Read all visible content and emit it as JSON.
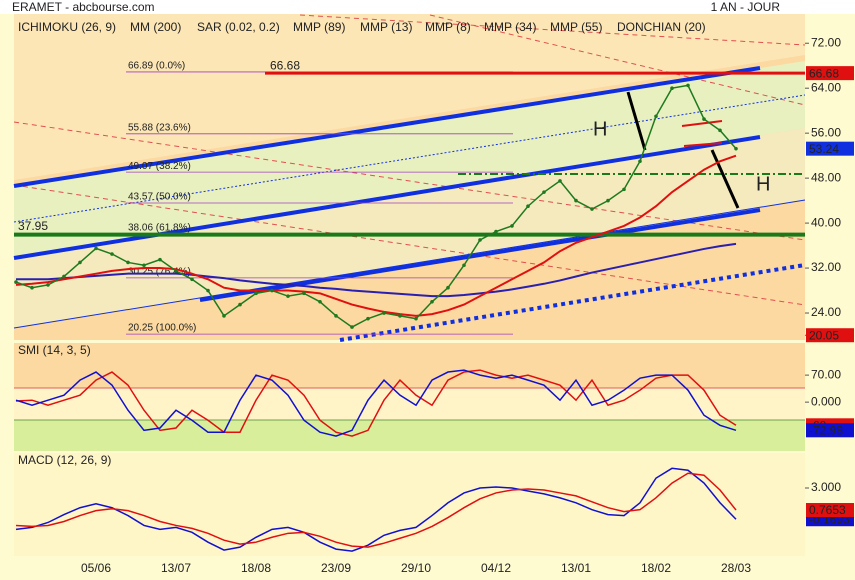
{
  "header": {
    "title": "ERAMET - abcbourse.com",
    "period": "1 AN - JOUR"
  },
  "chart_data": [
    {
      "type": "line",
      "categories": [
        null,
        null,
        null,
        null,
        null,
        "05/06",
        null,
        null,
        null,
        null,
        "13/07",
        null,
        null,
        null,
        null,
        "18/08",
        null,
        null,
        null,
        null,
        "23/09",
        null,
        null,
        null,
        null,
        "29/10",
        null,
        null,
        null,
        null,
        "04/12",
        null,
        null,
        null,
        null,
        "13/01",
        null,
        null,
        null,
        null,
        "18/02",
        null,
        null,
        null,
        null,
        "28/03"
      ],
      "values": [
        29.5,
        28.5,
        29,
        30.5,
        33,
        35.5,
        34.5,
        33,
        32.5,
        33.5,
        31.5,
        30,
        28,
        23.5,
        25.5,
        27.5,
        28,
        27,
        27.5,
        26,
        23.5,
        21.5,
        23,
        24,
        23.5,
        23,
        26,
        28.5,
        32.5,
        37,
        38.5,
        39.5,
        43,
        45.5,
        47.5,
        44,
        42.5,
        44,
        46,
        51,
        59,
        64,
        64.5,
        58.5,
        56.5,
        53.24
      ],
      "color": "#1f7a1f",
      "series": [
        {
          "name": "ICHIMOKU (26, 9)",
          "color": "#1010d0"
        },
        {
          "name": "MM (200)",
          "color": "#2a1fb0",
          "values": [
            30,
            30,
            30,
            30.2,
            30.4,
            30.6,
            30.8,
            31,
            31,
            31,
            31,
            30.8,
            30.5,
            30.2,
            29.8,
            29.5,
            29.2,
            29,
            28.8,
            28.5,
            28.3,
            28,
            27.8,
            27.6,
            27.4,
            27.2,
            27,
            27,
            27.2,
            27.5,
            27.8,
            28.2,
            28.7,
            29.2,
            29.8,
            30.5,
            31.2,
            31.8,
            32.4,
            33,
            33.6,
            34.2,
            34.8,
            35.4,
            35.9,
            36.3
          ]
        },
        {
          "name": "SAR (0.02, 0.2)",
          "color": "#e01010"
        },
        {
          "name": "MMP (89)",
          "color": "#e01010"
        },
        {
          "name": "MMP (13)",
          "color": "#1010d0"
        },
        {
          "name": "MMP (8)",
          "color": "#1a8a1a"
        },
        {
          "name": "MMP (34)",
          "color": "#e01010",
          "values": [
            29,
            29.2,
            29.5,
            30,
            30.5,
            31,
            31.5,
            31.8,
            32,
            32,
            31.8,
            31,
            30,
            28.5,
            28,
            28,
            28,
            28,
            27.8,
            27.5,
            26.5,
            25.5,
            24.8,
            24.2,
            23.8,
            23.5,
            23.8,
            24.5,
            25.5,
            27,
            28.5,
            30,
            31.5,
            33,
            35,
            36.5,
            37.5,
            38.5,
            39.5,
            41,
            43,
            45.5,
            47.5,
            49.5,
            51,
            52
          ]
        },
        {
          "name": "MMP (55)",
          "color": "#1010d0"
        },
        {
          "name": "DONCHIAN (20)",
          "color": "#6a6ad0"
        }
      ],
      "ylim": [
        19.2,
        77.2
      ],
      "yticks": [
        {
          "value": 72,
          "label": "72.00"
        },
        {
          "value": 64,
          "label": "64.00"
        },
        {
          "value": 56,
          "label": "56.00"
        },
        {
          "value": 48,
          "label": "48.00"
        },
        {
          "value": 40,
          "label": "40.00"
        },
        {
          "value": 32,
          "label": "32.00"
        },
        {
          "value": 24,
          "label": "24.00"
        }
      ],
      "fib_levels": [
        {
          "value": 66.89,
          "label": "66.89 (0.0%)"
        },
        {
          "value": 55.88,
          "label": "55.88 (23.6%)"
        },
        {
          "value": 49.07,
          "label": "49.07 (38.2%)"
        },
        {
          "value": 43.57,
          "label": "43.57 (50.0%)"
        },
        {
          "value": 38.06,
          "label": "38.06 (61.8%)"
        },
        {
          "value": 30.25,
          "label": "30.25 (76.4%)"
        },
        {
          "value": 20.25,
          "label": "20.25 (100.0%)"
        }
      ],
      "hlines": [
        {
          "value": 66.68,
          "color": "#e01010"
        },
        {
          "value": 37.95,
          "color": "#1a7a1a"
        },
        {
          "value": 20.05,
          "color": "#e01010"
        }
      ],
      "annotations": [
        "H",
        "H"
      ]
    },
    {
      "type": "line",
      "title": "SMI (14, 3, 5)",
      "ylim": [
        -124,
        148
      ],
      "yticks": [
        {
          "value": 70,
          "label": "70.00"
        },
        {
          "value": 0,
          "label": "0.000"
        }
      ],
      "series": [
        {
          "color": "#e01010",
          "values": [
            3,
            5,
            -8,
            5,
            18,
            57,
            78,
            44,
            -21,
            -73,
            -67,
            -21,
            -47,
            -78,
            -78,
            5,
            70,
            57,
            18,
            -47,
            -78,
            -88,
            -73,
            5,
            57,
            18,
            -8,
            57,
            78,
            83,
            70,
            62,
            70,
            57,
            44,
            5,
            57,
            -8,
            5,
            31,
            62,
            70,
            70,
            31,
            -34,
            -60
          ]
        },
        {
          "color": "#1010d0",
          "values": [
            5,
            -8,
            5,
            18,
            57,
            78,
            44,
            -21,
            -73,
            -67,
            -21,
            -47,
            -78,
            -78,
            5,
            70,
            57,
            18,
            -47,
            -78,
            -88,
            -73,
            5,
            57,
            18,
            -8,
            57,
            78,
            83,
            70,
            62,
            70,
            57,
            44,
            5,
            57,
            -8,
            5,
            31,
            62,
            70,
            70,
            31,
            -34,
            -60,
            -72.98
          ]
        }
      ]
    },
    {
      "type": "line",
      "title": "MACD (12, 26, 9)",
      "ylim": [
        -3.8,
        6.35
      ],
      "yticks": [
        {
          "value": 3,
          "label": "3.000"
        }
      ],
      "series": [
        {
          "color": "#1010d0",
          "values": [
            -1.2,
            -1.0,
            -0.5,
            0.3,
            1.0,
            1.4,
            1.0,
            0.2,
            -0.8,
            -1.2,
            -1.0,
            -1.5,
            -2.5,
            -3.3,
            -3.0,
            -2.0,
            -1.2,
            -1.0,
            -1.5,
            -2.5,
            -3.2,
            -3.4,
            -2.8,
            -1.8,
            -1.3,
            -1.0,
            0.2,
            1.5,
            2.5,
            3.0,
            3.1,
            3.0,
            2.7,
            2.4,
            2.0,
            1.5,
            0.8,
            0.3,
            0.2,
            1.5,
            4.0,
            5.0,
            4.8,
            3.5,
            1.5,
            -0.1693
          ]
        },
        {
          "color": "#e01010",
          "values": [
            -0.8,
            -0.9,
            -0.8,
            -0.4,
            0.2,
            0.7,
            0.9,
            0.7,
            0.2,
            -0.4,
            -0.8,
            -1.1,
            -1.6,
            -2.3,
            -2.7,
            -2.5,
            -2.0,
            -1.6,
            -1.5,
            -1.9,
            -2.5,
            -2.9,
            -3.0,
            -2.6,
            -2.1,
            -1.6,
            -0.9,
            0.0,
            1.0,
            1.9,
            2.5,
            2.8,
            2.9,
            2.8,
            2.5,
            2.2,
            1.6,
            1.0,
            0.6,
            0.8,
            2.0,
            3.5,
            4.5,
            4.3,
            2.8,
            0.7653
          ]
        }
      ]
    }
  ]
}
